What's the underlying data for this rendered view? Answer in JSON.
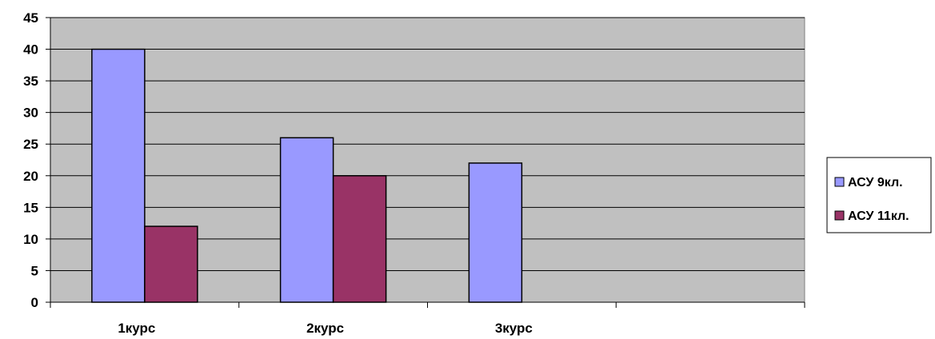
{
  "chart_data": {
    "type": "bar",
    "title": "",
    "xlabel": "",
    "ylabel": "",
    "categories": [
      "1курс",
      "2курс",
      "3курс",
      ""
    ],
    "series": [
      {
        "name": "АСУ 9кл.",
        "values": [
          40,
          26,
          22,
          null
        ],
        "color": "#9999ff"
      },
      {
        "name": "АСУ 11кл.",
        "values": [
          12,
          20,
          null,
          null
        ],
        "color": "#993366"
      }
    ],
    "ylim": [
      0,
      45
    ],
    "yticks": [
      0,
      5,
      10,
      15,
      20,
      25,
      30,
      35,
      40,
      45
    ],
    "grid": true,
    "plot_background": "#c0c0c0",
    "legend_position": "right"
  }
}
